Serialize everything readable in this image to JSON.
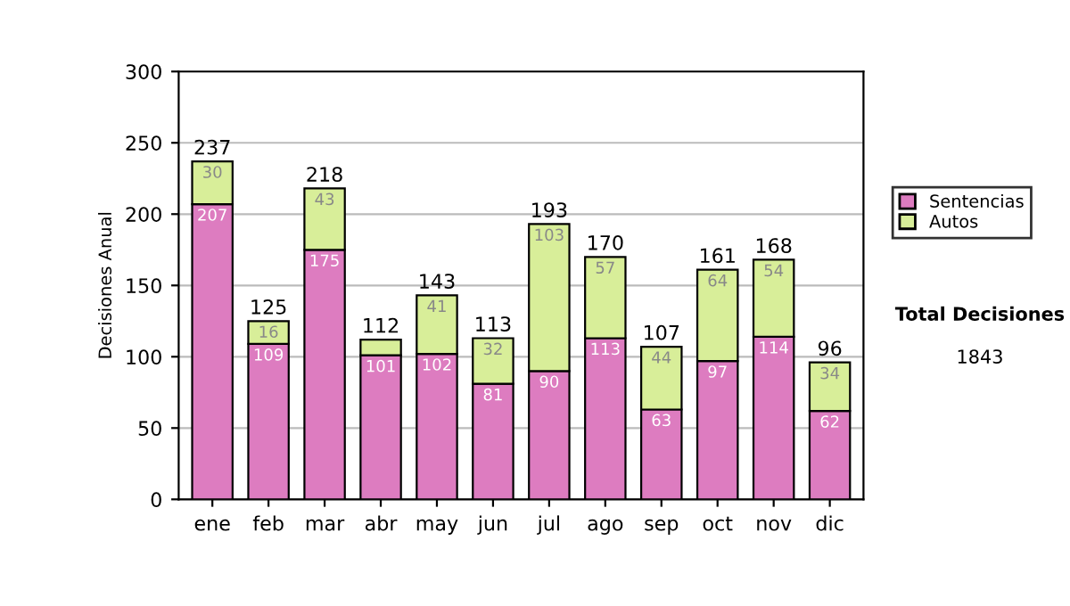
{
  "chart_data": {
    "type": "bar",
    "stacked": true,
    "ylabel": "Decisiones Anual",
    "categories": [
      "ene",
      "feb",
      "mar",
      "abr",
      "may",
      "jun",
      "jul",
      "ago",
      "sep",
      "oct",
      "nov",
      "dic"
    ],
    "series": [
      {
        "name": "Sentencias",
        "color": "#dd7cc0",
        "values": [
          207,
          109,
          175,
          101,
          102,
          81,
          90,
          113,
          63,
          97,
          114,
          62
        ],
        "value_labels": [
          "207",
          "109",
          "175",
          "101",
          "102",
          "81",
          "90",
          "113",
          "63",
          "97",
          "114",
          "62"
        ]
      },
      {
        "name": "Autos",
        "color": "#d8ee99",
        "values": [
          30,
          16,
          43,
          11,
          41,
          32,
          103,
          57,
          44,
          64,
          54,
          34
        ],
        "value_labels": [
          "30",
          "16",
          "43",
          null,
          "41",
          "32",
          "103",
          "57",
          "44",
          "64",
          "54",
          "34"
        ]
      }
    ],
    "totals": [
      "237",
      "125",
      "218",
      "112",
      "143",
      "113",
      "193",
      "170",
      "107",
      "161",
      "168",
      "96"
    ],
    "ylim": [
      0,
      300
    ],
    "yticks": [
      0,
      50,
      100,
      150,
      200,
      250,
      300
    ],
    "grid": "y",
    "legend": "right",
    "annotations": [
      "Total Decisiones",
      "1843"
    ]
  }
}
